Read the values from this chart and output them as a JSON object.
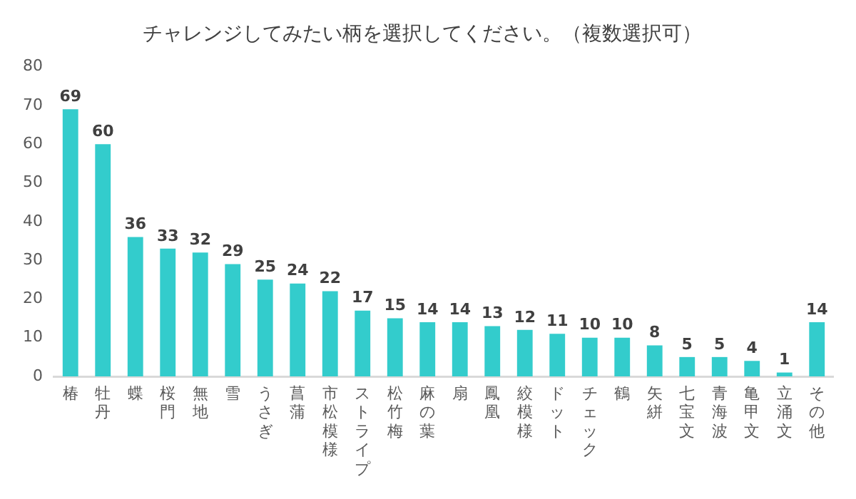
{
  "chart_data": {
    "type": "bar",
    "title": "チャレンジしてみたい柄を選択してください。（複数選択可）",
    "categories": [
      "椿",
      "牡丹",
      "蝶",
      "桜門",
      "無地",
      "雪",
      "うさぎ",
      "菖蒲",
      "市松模様",
      "ストライプ",
      "松竹梅",
      "麻の葉",
      "扇",
      "鳳凰",
      "絞模様",
      "ドット",
      "チェック",
      "鶴",
      "矢絣",
      "七宝文",
      "青海波",
      "亀甲文",
      "立涌文",
      "その他"
    ],
    "values": [
      69,
      60,
      36,
      33,
      32,
      29,
      25,
      24,
      22,
      17,
      15,
      14,
      14,
      13,
      12,
      11,
      10,
      10,
      8,
      5,
      5,
      4,
      1,
      14
    ],
    "color": "#33cccc",
    "ylim": [
      0,
      80
    ],
    "yticks": [
      0,
      10,
      20,
      30,
      40,
      50,
      60,
      70,
      80
    ],
    "grid": false,
    "data_labels": true
  }
}
